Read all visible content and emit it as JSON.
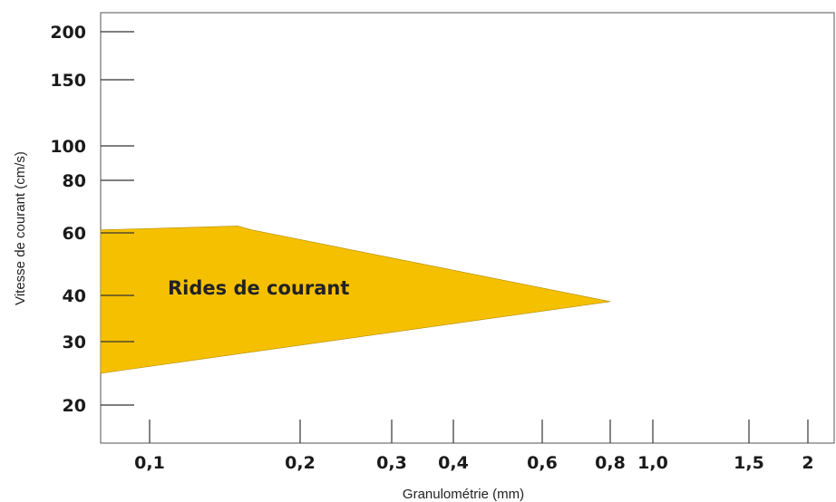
{
  "chart_data": {
    "type": "area",
    "xlabel": "Granulométrie (mm)",
    "ylabel": "Vitesse de courant (cm/s)",
    "x_ticks": [
      {
        "value": 0.1,
        "label": "0,1"
      },
      {
        "value": 0.2,
        "label": "0,2"
      },
      {
        "value": 0.3,
        "label": "0,3"
      },
      {
        "value": 0.4,
        "label": "0,4"
      },
      {
        "value": 0.6,
        "label": "0,6"
      },
      {
        "value": 0.8,
        "label": "0,8"
      },
      {
        "value": 1.0,
        "label": "1,0"
      },
      {
        "value": 1.5,
        "label": "1,5"
      },
      {
        "value": 2,
        "label": "2"
      }
    ],
    "y_ticks": [
      {
        "value": 20,
        "label": "20"
      },
      {
        "value": 30,
        "label": "30"
      },
      {
        "value": 40,
        "label": "40"
      },
      {
        "value": 60,
        "label": "60"
      },
      {
        "value": 80,
        "label": "80"
      },
      {
        "value": 100,
        "label": "100"
      },
      {
        "value": 150,
        "label": "150"
      },
      {
        "value": 200,
        "label": "200"
      }
    ],
    "region": {
      "label": "Rides de courant",
      "color": "#F5C000",
      "upper": [
        {
          "x": 0.085,
          "y": 61
        },
        {
          "x": 0.13,
          "y": 62
        },
        {
          "x": 0.15,
          "y": 62.3
        },
        {
          "x": 0.16,
          "y": 61
        },
        {
          "x": 0.8,
          "y": 38.5
        }
      ],
      "lower": [
        {
          "x": 0.085,
          "y": 24.5
        },
        {
          "x": 0.8,
          "y": 38.5
        }
      ]
    }
  }
}
